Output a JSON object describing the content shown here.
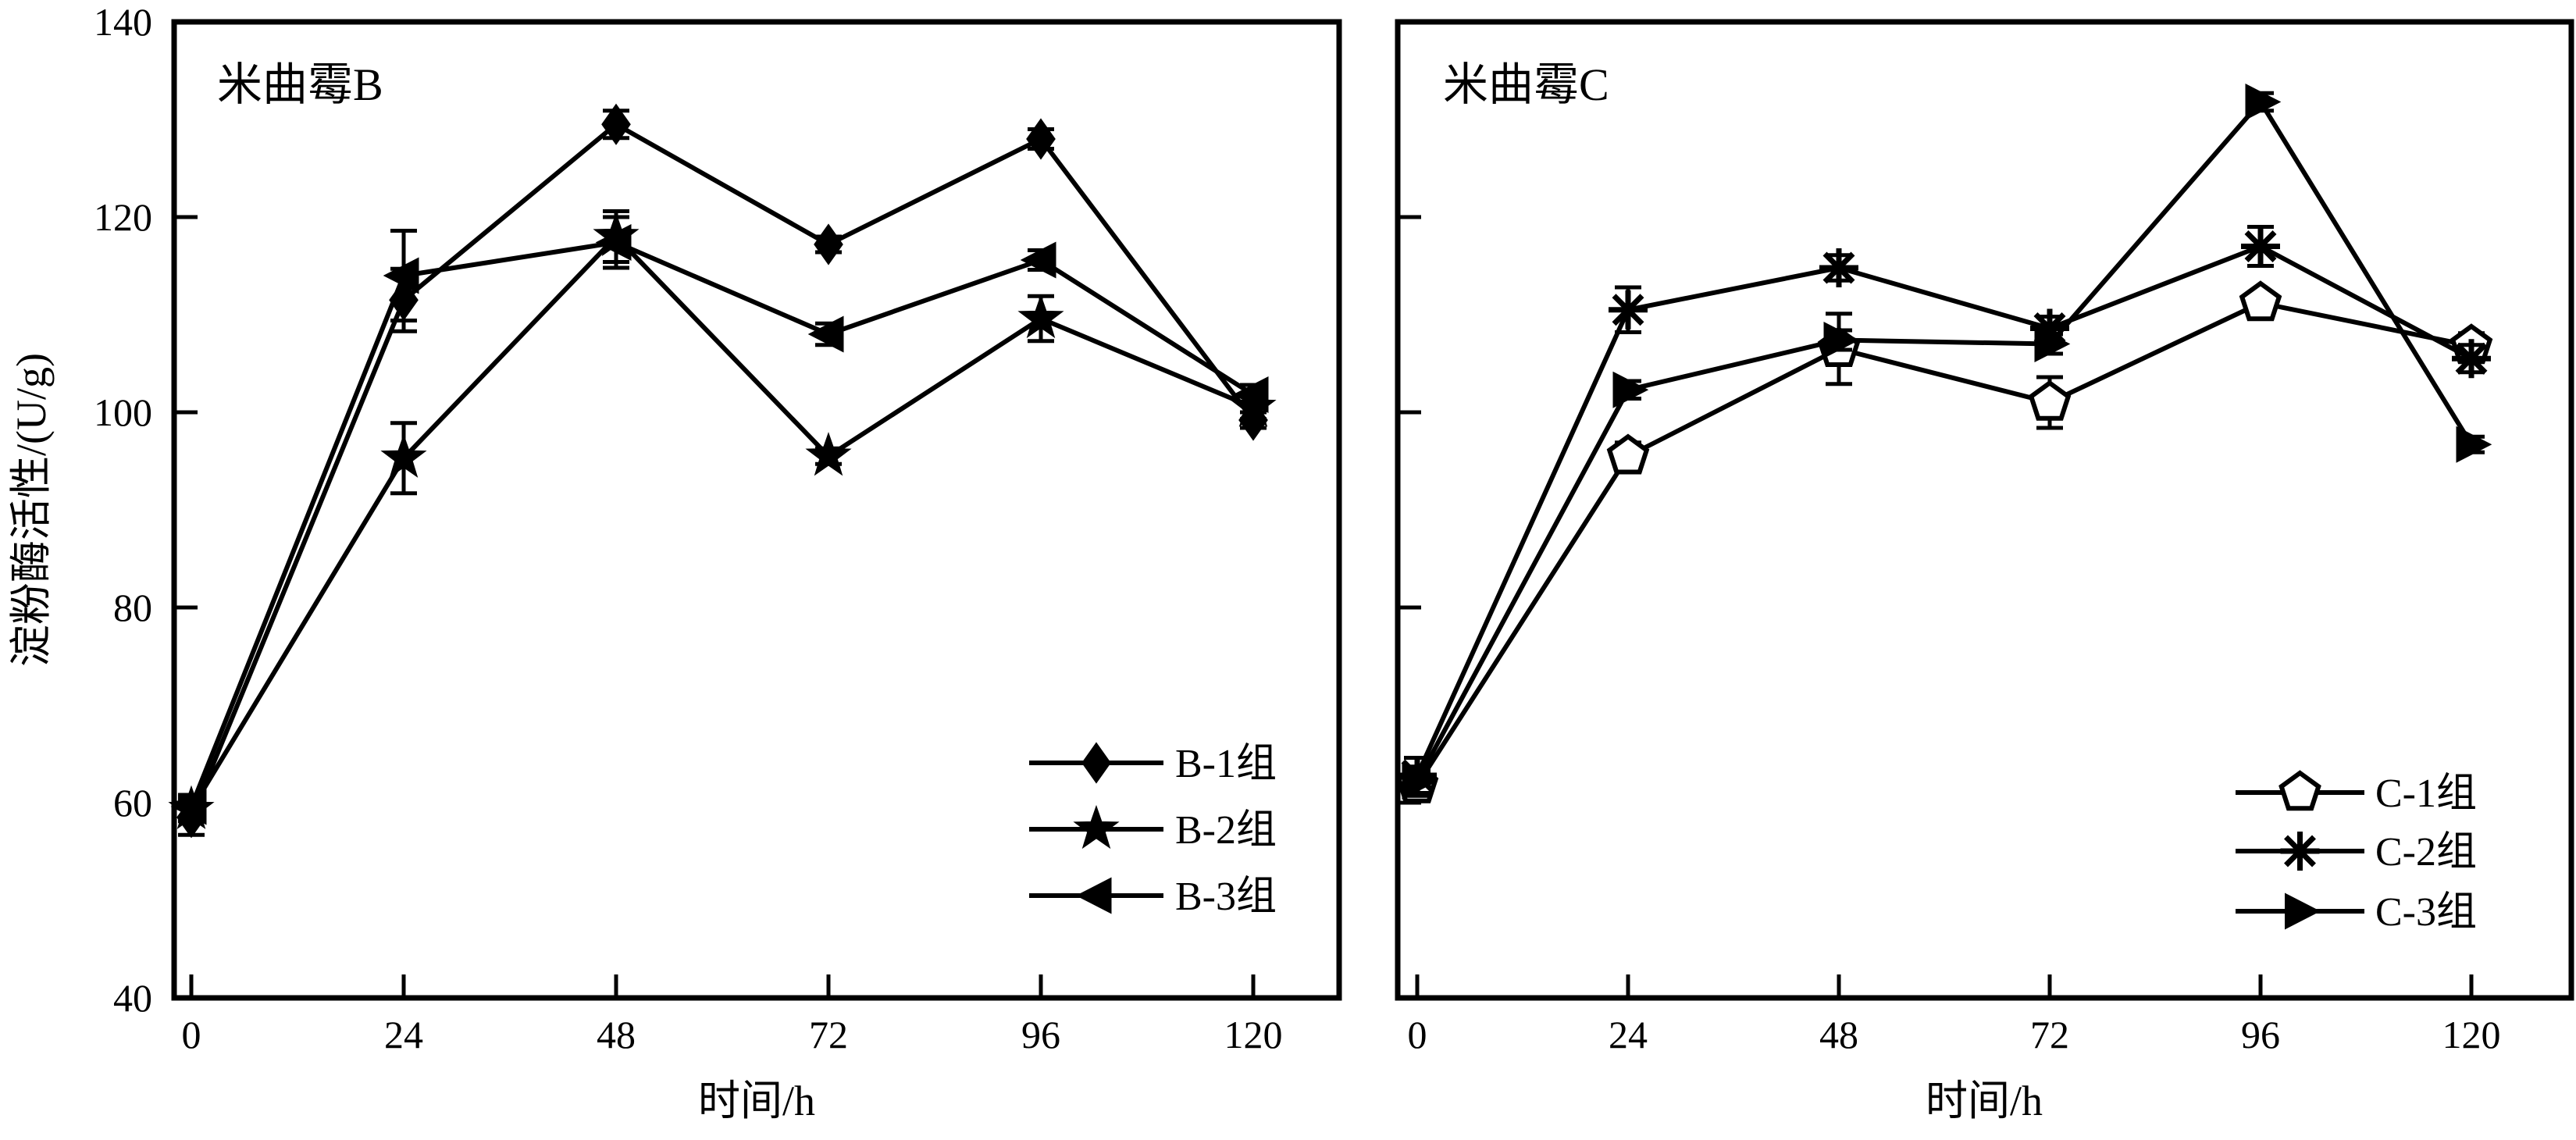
{
  "figure": {
    "background": "#ffffff",
    "ink_color": "#000000",
    "y_axis_label": "淀粉酶活性/(U/g)",
    "x_axis_label": "时间/h"
  },
  "chart_data": [
    {
      "type": "line",
      "title": "米曲霉B",
      "xlabel": "时间/h",
      "ylabel": "淀粉酶活性/(U/g)",
      "x": [
        0,
        24,
        48,
        72,
        96,
        120
      ],
      "xlim": [
        -3,
        132
      ],
      "ylim": [
        40,
        140
      ],
      "y_ticks": [
        40,
        60,
        80,
        100,
        120,
        140
      ],
      "grid": false,
      "legend_position": "inside lower right",
      "series": [
        {
          "name": "B-1组",
          "marker": "diamond-filled",
          "values": [
            58.5,
            111.5,
            129.5,
            117.2,
            128.0,
            99.2
          ],
          "errors": [
            1.8,
            3.2,
            1.4,
            0.8,
            1.0,
            0.8
          ]
        },
        {
          "name": "B-2组",
          "marker": "star-filled",
          "values": [
            59.3,
            95.3,
            118.0,
            95.5,
            109.6,
            100.5
          ],
          "errors": [
            1.2,
            3.6,
            2.6,
            0.8,
            2.3,
            1.2
          ]
        },
        {
          "name": "B-3组",
          "marker": "triangle-left-filled",
          "values": [
            59.6,
            114.0,
            117.4,
            108.0,
            115.6,
            101.8
          ],
          "errors": [
            1.2,
            4.6,
            2.6,
            1.1,
            1.0,
            1.0
          ]
        }
      ]
    },
    {
      "type": "line",
      "title": "米曲霉C",
      "xlabel": "时间/h",
      "ylabel": "淀粉酶活性/(U/g)",
      "x": [
        0,
        24,
        48,
        72,
        96,
        120
      ],
      "xlim": [
        -3,
        132
      ],
      "ylim": [
        40,
        140
      ],
      "y_ticks": [
        40,
        60,
        80,
        100,
        120,
        140
      ],
      "grid": false,
      "legend_position": "inside lower right",
      "series": [
        {
          "name": "C-1组",
          "marker": "pentagon-open",
          "values": [
            61.8,
            95.5,
            106.5,
            101.0,
            111.2,
            106.8
          ],
          "errors": [
            1.5,
            1.4,
            3.6,
            2.6,
            0.9,
            1.3
          ]
        },
        {
          "name": "C-2组",
          "marker": "asterisk",
          "values": [
            62.8,
            110.5,
            114.8,
            108.6,
            117.0,
            105.5
          ],
          "errors": [
            1.8,
            2.3,
            1.3,
            1.2,
            2.0,
            1.4
          ]
        },
        {
          "name": "C-3组",
          "marker": "triangle-right-filled",
          "values": [
            62.2,
            102.3,
            107.4,
            107.0,
            131.8,
            96.7
          ],
          "errors": [
            1.5,
            0.9,
            1.0,
            1.0,
            0.9,
            0.8
          ]
        }
      ]
    }
  ]
}
